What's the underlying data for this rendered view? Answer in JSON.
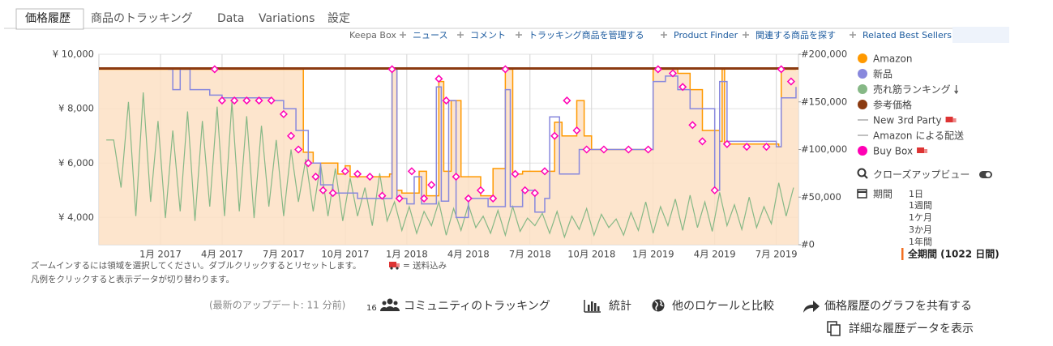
{
  "tabs": [
    "価格履歴",
    "商品のトラッキング",
    "Data",
    "Variations",
    "設定"
  ],
  "links": [
    "Keepa Box",
    "ニュース",
    "コメント",
    "トラッキング商品を管理する",
    "Product Finder",
    "関連する商品を探す",
    "Related Best Sellers"
  ],
  "chart_data": {
    "type": "line",
    "xlim": [
      2016.75,
      2019.59
    ],
    "xticks": [
      {
        "value": 2017,
        "label": "1月 2017"
      },
      {
        "value": 2017.25,
        "label": "4月 2017"
      },
      {
        "value": 2017.5,
        "label": "7月 2017"
      },
      {
        "value": 2017.75,
        "label": "10月 2017"
      },
      {
        "value": 2018,
        "label": "1月 2018"
      },
      {
        "value": 2018.25,
        "label": "4月 2018"
      },
      {
        "value": 2018.5,
        "label": "7月 2018"
      },
      {
        "value": 2018.75,
        "label": "10月 2018"
      },
      {
        "value": 2019,
        "label": "1月 2019"
      },
      {
        "value": 2019.25,
        "label": "4月 2019"
      },
      {
        "value": 2019.5,
        "label": "7月 2019"
      }
    ],
    "ylim": [
      3000,
      10000
    ],
    "yticks": [
      {
        "value": 10000,
        "label": "¥ 10,000"
      },
      {
        "value": 8000,
        "label": "¥ 8,000"
      },
      {
        "value": 6000,
        "label": "¥ 6,000"
      },
      {
        "value": 4000,
        "label": "¥ 4,000"
      }
    ],
    "y2lim": [
      0,
      200000
    ],
    "y2ticks": [
      {
        "value": 200000,
        "label": "#200,000"
      },
      {
        "value": 150000,
        "label": "#150,000"
      },
      {
        "value": 100000,
        "label": "#100,000"
      },
      {
        "value": 50000,
        "label": "#50,000"
      },
      {
        "value": 0,
        "label": "#0"
      }
    ],
    "grid": true,
    "series": [
      {
        "name": "Amazon",
        "color": "#ff9900",
        "step": true,
        "area_color": "#fde0c4",
        "x": [
          2016.75,
          2017.58,
          2017.58,
          2017.62,
          2017.72,
          2017.75,
          2017.77,
          2017.93,
          2017.94,
          2017.96,
          2017.98,
          2018.05,
          2018.08,
          2018.13,
          2018.15,
          2018.18,
          2018.22,
          2018.3,
          2018.35,
          2018.4,
          2018.43,
          2018.47,
          2018.58,
          2018.6,
          2018.63,
          2018.69,
          2018.72,
          2018.75,
          2018.98,
          2019.0,
          2019.1,
          2019.15,
          2019.2,
          2019.27,
          2019.28,
          2019.29,
          2019.51,
          2019.52,
          2019.58
        ],
        "values": [
          9450,
          9450,
          6400,
          6000,
          5600,
          5900,
          5500,
          5600,
          9450,
          5000,
          4900,
          5700,
          4800,
          9000,
          5700,
          8300,
          5500,
          4800,
          5800,
          9450,
          5600,
          5700,
          5700,
          7500,
          7000,
          8300,
          7000,
          6500,
          6500,
          9450,
          9300,
          8700,
          7200,
          6800,
          9450,
          6700,
          6600,
          9450,
          9450
        ]
      },
      {
        "name": "新品",
        "color": "#8888dd",
        "step": true,
        "x": [
          2017.03,
          2017.05,
          2017.08,
          2017.12,
          2017.2,
          2017.25,
          2017.45,
          2017.5,
          2017.55,
          2017.6,
          2017.65,
          2017.7,
          2017.8,
          2017.93,
          2017.94,
          2017.96,
          2018.0,
          2018.03,
          2018.06,
          2018.12,
          2018.14,
          2018.17,
          2018.2,
          2018.25,
          2018.33,
          2018.4,
          2018.42,
          2018.47,
          2018.52,
          2018.56,
          2018.58,
          2018.62,
          2018.7,
          2018.98,
          2019.0,
          2019.05,
          2019.1,
          2019.15,
          2019.25,
          2019.27,
          2019.3,
          2019.5,
          2019.52,
          2019.58
        ],
        "values": [
          9450,
          8700,
          9450,
          8700,
          8500,
          8400,
          8300,
          8000,
          7200,
          6000,
          5200,
          4900,
          4700,
          4700,
          9450,
          4700,
          4500,
          5500,
          4500,
          8800,
          4600,
          8300,
          4000,
          4700,
          4400,
          8700,
          4400,
          5000,
          4200,
          4700,
          7700,
          5600,
          6500,
          6500,
          9000,
          9200,
          8700,
          8000,
          5000,
          9000,
          6800,
          6600,
          8400,
          8800
        ]
      },
      {
        "name": "売れ筋ランキング",
        "color": "#86b886",
        "axis": "y2",
        "x": [
          2016.78,
          2016.81,
          2016.84,
          2016.87,
          2016.9,
          2016.93,
          2016.96,
          2016.99,
          2017.02,
          2017.05,
          2017.08,
          2017.11,
          2017.14,
          2017.17,
          2017.2,
          2017.23,
          2017.26,
          2017.29,
          2017.32,
          2017.35,
          2017.38,
          2017.41,
          2017.44,
          2017.47,
          2017.5,
          2017.53,
          2017.56,
          2017.59,
          2017.62,
          2017.65,
          2017.68,
          2017.71,
          2017.74,
          2017.77,
          2017.8,
          2017.83,
          2017.86,
          2017.89,
          2017.92,
          2017.95,
          2017.98,
          2018.01,
          2018.04,
          2018.07,
          2018.1,
          2018.13,
          2018.16,
          2018.19,
          2018.22,
          2018.25,
          2018.28,
          2018.31,
          2018.34,
          2018.37,
          2018.4,
          2018.43,
          2018.46,
          2018.49,
          2018.52,
          2018.55,
          2018.58,
          2018.61,
          2018.64,
          2018.67,
          2018.7,
          2018.73,
          2018.76,
          2018.79,
          2018.82,
          2018.85,
          2018.88,
          2018.91,
          2018.94,
          2018.97,
          2019.0,
          2019.03,
          2019.06,
          2019.09,
          2019.12,
          2019.15,
          2019.18,
          2019.21,
          2019.24,
          2019.27,
          2019.3,
          2019.33,
          2019.36,
          2019.39,
          2019.42,
          2019.45,
          2019.48,
          2019.51,
          2019.54,
          2019.57
        ],
        "values": [
          110000,
          110000,
          60000,
          150000,
          30000,
          160000,
          45000,
          130000,
          28000,
          120000,
          35000,
          140000,
          25000,
          130000,
          40000,
          145000,
          30000,
          150000,
          35000,
          135000,
          28000,
          125000,
          40000,
          110000,
          30000,
          100000,
          45000,
          90000,
          35000,
          85000,
          30000,
          80000,
          25000,
          70000,
          30000,
          60000,
          20000,
          75000,
          25000,
          45000,
          15000,
          40000,
          12000,
          35000,
          20000,
          45000,
          10000,
          38000,
          15000,
          42000,
          18000,
          30000,
          12000,
          36000,
          10000,
          40000,
          14000,
          28000,
          20000,
          33000,
          12000,
          35000,
          8000,
          30000,
          16000,
          38000,
          10000,
          32000,
          18000,
          27000,
          10000,
          34000,
          15000,
          45000,
          12000,
          40000,
          20000,
          48000,
          15000,
          52000,
          18000,
          45000,
          14000,
          55000,
          20000,
          42000,
          16000,
          50000,
          18000,
          40000,
          22000,
          65000,
          30000,
          60000
        ]
      },
      {
        "name": "参考価格",
        "color": "#8b3a10",
        "x": [
          2016.75,
          2019.59
        ],
        "values": [
          9480,
          9480
        ]
      },
      {
        "name": "New 3rd Party",
        "color": "#aaaaaa",
        "x": [],
        "values": []
      },
      {
        "name": "Amazon による配送",
        "color": "#aaaaaa",
        "x": [],
        "values": []
      },
      {
        "name": "Buy Box",
        "color": "#ff00b4",
        "marker": "diamond",
        "x": [
          2017.22,
          2017.25,
          2017.3,
          2017.35,
          2017.4,
          2017.45,
          2017.5,
          2017.53,
          2017.56,
          2017.6,
          2017.63,
          2017.66,
          2017.7,
          2017.75,
          2017.8,
          2017.85,
          2017.9,
          2017.94,
          2017.97,
          2018.02,
          2018.07,
          2018.1,
          2018.13,
          2018.16,
          2018.2,
          2018.25,
          2018.3,
          2018.35,
          2018.4,
          2018.44,
          2018.48,
          2018.52,
          2018.56,
          2018.6,
          2018.65,
          2018.69,
          2018.73,
          2018.8,
          2018.9,
          2018.98,
          2019.02,
          2019.08,
          2019.12,
          2019.16,
          2019.2,
          2019.25,
          2019.3,
          2019.38,
          2019.46,
          2019.52,
          2019.56
        ],
        "values": [
          9450,
          8300,
          8300,
          8300,
          8300,
          8300,
          7800,
          7000,
          6500,
          6000,
          5500,
          5000,
          4900,
          5700,
          5600,
          5500,
          4800,
          9450,
          4700,
          5700,
          4700,
          5200,
          9100,
          8300,
          5500,
          4700,
          5000,
          4700,
          9450,
          5600,
          5000,
          4900,
          5700,
          7000,
          8300,
          7200,
          6500,
          6500,
          6500,
          6500,
          9450,
          9300,
          8800,
          7400,
          6800,
          5000,
          6700,
          6600,
          6600,
          9450,
          9000
        ]
      }
    ]
  },
  "sidebar": {
    "closeup": "クローズアップビュー",
    "period_label": "期間",
    "periods": [
      "1日",
      "1週間",
      "1ケ月",
      "3か月",
      "1年間",
      "全期間 (1022 日間)"
    ]
  },
  "notes": [
    "ズームインするには領域を選択してください。ダブルクリックするとリセットします。",
    "= 送料込み",
    "凡例をクリックすると表示データが切り替わります。"
  ],
  "footer": {
    "updated": "(最新のアップデート: 11 分前)",
    "count": "16",
    "actions": [
      "コミュニティのトラッキング",
      "統計",
      "他のロケールと比較",
      "価格履歴のグラフを共有する",
      "詳細な履歴データを表示"
    ]
  }
}
